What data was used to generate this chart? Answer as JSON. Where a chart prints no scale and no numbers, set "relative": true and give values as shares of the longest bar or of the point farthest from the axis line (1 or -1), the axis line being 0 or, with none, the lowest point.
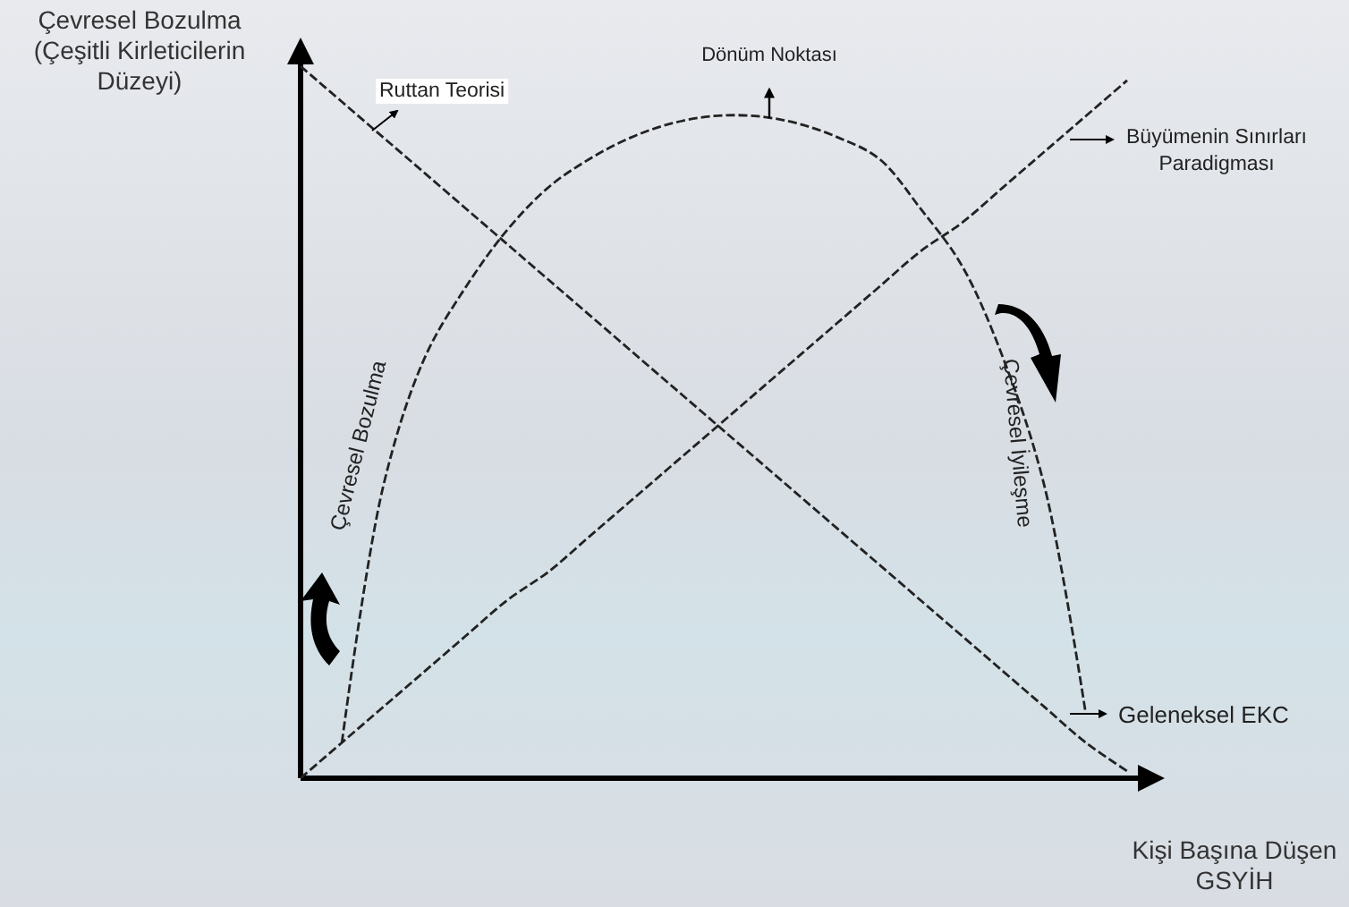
{
  "chart_data": {
    "type": "line",
    "relative": true,
    "xlabel": "Kişi Başına Düşen GSYİH",
    "ylabel": "Çevresel Bozulma (Çeşitli Kirleticilerin Düzeyi)",
    "categories": [
      null,
      null,
      null,
      null,
      null,
      null,
      null,
      null,
      null,
      null,
      null,
      null,
      null,
      null,
      null,
      null,
      null,
      null,
      null,
      null,
      null
    ],
    "series": [
      {
        "name": "Ruttan Teorisi",
        "color": "#222222",
        "values": [
          1,
          0.95,
          0.9,
          0.85,
          0.8,
          0.75,
          0.7,
          0.65,
          0.6,
          0.55,
          0.5,
          0.45,
          0.4,
          0.35,
          0.3,
          0.25,
          0.2,
          0.15,
          0.1,
          0.05,
          0.01
        ]
      },
      {
        "name": "Büyümenin Sınırları Paradigması",
        "color": "#222222",
        "values": [
          0,
          0.05,
          0.1,
          0.15,
          0.2,
          0.25,
          0.29,
          0.34,
          0.39,
          0.44,
          0.49,
          0.54,
          0.59,
          0.64,
          0.69,
          0.74,
          0.78,
          0.83,
          0.88,
          0.93,
          0.98
        ]
      },
      {
        "name": "Geleneksel EKC",
        "color": "#222222",
        "values": [
          null,
          0.05,
          0.41,
          0.59,
          0.69,
          0.77,
          0.83,
          0.87,
          0.9,
          0.92,
          0.93,
          0.93,
          0.92,
          0.9,
          0.87,
          0.8,
          0.72,
          0.59,
          0.41,
          0.09,
          null
        ]
      }
    ],
    "annotations": [
      "Dönüm Noktası",
      "Çevresel Bozulma",
      "Çevresel İyileşme"
    ],
    "line_style": "dashed",
    "marker": "none",
    "grid": false
  }
}
